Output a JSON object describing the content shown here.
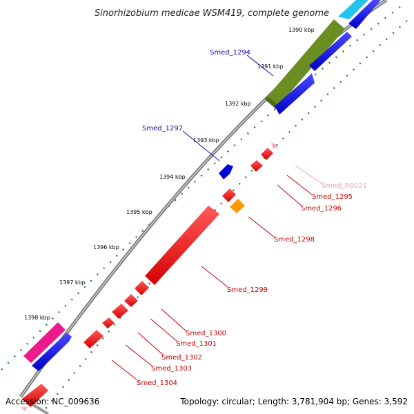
{
  "title": "Sinorhizobium medicae WSM419, complete genome",
  "footer": {
    "accession": "Accession: NC_009636",
    "summary": "Topology: circular; Length: 3,781,904 bp; Genes: 3,592"
  },
  "colors": {
    "backbone": "#8c8c8c",
    "tick_dot": "#1f8a1f",
    "forward_label": "#0a0aa8",
    "reverse_label": "#cc0000",
    "rna_label": "#f59ac6"
  },
  "kbp_ticks": [
    "1390 kbp",
    "1391 kbp",
    "1392 kbp",
    "1393 kbp",
    "1394 kbp",
    "1395 kbp",
    "1396 kbp",
    "1397 kbp",
    "1398 kbp"
  ],
  "gene_labels": [
    {
      "text": "Smed_1294",
      "strand": "forward"
    },
    {
      "text": "Smed_1297",
      "strand": "forward"
    },
    {
      "text": "Smed_R0021",
      "strand": "rna"
    },
    {
      "text": "Smed_1295",
      "strand": "reverse"
    },
    {
      "text": "Smed_1296",
      "strand": "reverse"
    },
    {
      "text": "Smed_1298",
      "strand": "reverse"
    },
    {
      "text": "Smed_1299",
      "strand": "reverse"
    },
    {
      "text": "Smed_1300",
      "strand": "reverse"
    },
    {
      "text": "Smed_1301",
      "strand": "reverse"
    },
    {
      "text": "Smed_1302",
      "strand": "reverse"
    },
    {
      "text": "Smed_1303",
      "strand": "reverse"
    },
    {
      "text": "Smed_1304",
      "strand": "reverse"
    }
  ]
}
